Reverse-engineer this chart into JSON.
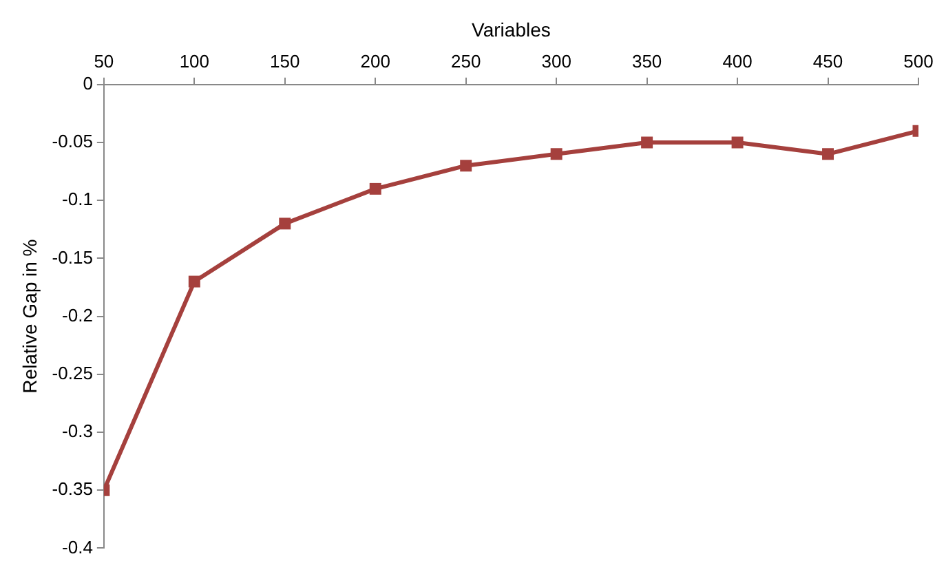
{
  "chart_data": {
    "type": "line",
    "xlabel": "Variables",
    "ylabel": "Relative Gap in %",
    "x": [
      50,
      100,
      150,
      200,
      250,
      300,
      350,
      400,
      450,
      500
    ],
    "series": [
      {
        "color": "#a5403d",
        "values": [
          -0.35,
          -0.17,
          -0.12,
          -0.09,
          -0.07,
          -0.06,
          -0.05,
          -0.05,
          -0.06,
          -0.04
        ]
      }
    ],
    "xlim": [
      50,
      500
    ],
    "xticks": [
      50,
      100,
      150,
      200,
      250,
      300,
      350,
      400,
      450,
      500
    ],
    "ylim": [
      -0.4,
      0
    ],
    "yticks": [
      0,
      -0.05,
      -0.1,
      -0.15,
      -0.2,
      -0.25,
      -0.3,
      -0.35,
      -0.4
    ],
    "grid": false,
    "legend": false,
    "marker": "square",
    "line_style": "solid"
  }
}
